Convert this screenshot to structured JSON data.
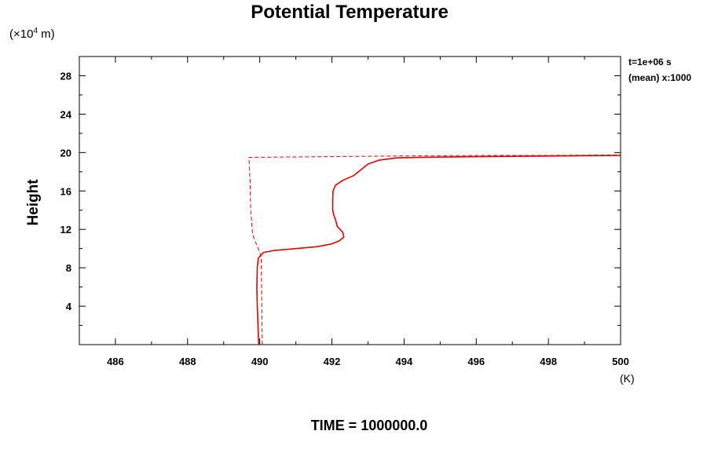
{
  "chart_data": {
    "type": "line",
    "title": "Potential Temperature",
    "ylabel": "Height",
    "y_unit": "(×10",
    "y_unit_exp": "4",
    "y_unit_suffix": " m)",
    "x_unit": "(K)",
    "annotations": [
      "t=1e+06 s",
      "(mean) x:1000"
    ],
    "footer": "TIME = 1000000.0",
    "xlim": [
      485,
      500
    ],
    "ylim": [
      0,
      30
    ],
    "x_ticks": [
      486,
      488,
      490,
      492,
      494,
      496,
      498,
      500
    ],
    "y_ticks": [
      4,
      8,
      12,
      16,
      20,
      24,
      28
    ],
    "grid": false,
    "series": [
      {
        "style": "solid",
        "color": "#e00000",
        "points": [
          [
            489.97,
            0.0
          ],
          [
            489.95,
            2.0
          ],
          [
            489.93,
            4.0
          ],
          [
            489.92,
            6.0
          ],
          [
            489.93,
            8.0
          ],
          [
            489.96,
            9.0
          ],
          [
            490.1,
            9.6
          ],
          [
            490.4,
            9.8
          ],
          [
            491.0,
            10.0
          ],
          [
            491.6,
            10.2
          ],
          [
            492.0,
            10.5
          ],
          [
            492.2,
            10.8
          ],
          [
            492.33,
            11.2
          ],
          [
            492.3,
            11.7
          ],
          [
            492.15,
            12.3
          ],
          [
            492.1,
            13.0
          ],
          [
            492.05,
            13.5
          ],
          [
            492.02,
            14.0
          ],
          [
            492.02,
            15.0
          ],
          [
            492.03,
            16.0
          ],
          [
            492.1,
            16.6
          ],
          [
            492.3,
            17.1
          ],
          [
            492.6,
            17.6
          ],
          [
            492.8,
            18.2
          ],
          [
            493.0,
            18.8
          ],
          [
            493.3,
            19.2
          ],
          [
            493.8,
            19.45
          ],
          [
            494.5,
            19.5
          ],
          [
            495.5,
            19.55
          ],
          [
            497.0,
            19.6
          ],
          [
            498.5,
            19.65
          ],
          [
            500.0,
            19.7
          ]
        ]
      },
      {
        "style": "dashed",
        "color": "#e00000",
        "points": [
          [
            490.07,
            0.0
          ],
          [
            490.06,
            3.0
          ],
          [
            490.05,
            6.0
          ],
          [
            490.04,
            9.0
          ],
          [
            490.0,
            9.6
          ],
          [
            489.9,
            10.5
          ],
          [
            489.8,
            11.5
          ],
          [
            489.75,
            14.0
          ],
          [
            489.73,
            17.0
          ],
          [
            489.7,
            19.5
          ],
          [
            491.5,
            19.55
          ],
          [
            494.0,
            19.65
          ],
          [
            496.5,
            19.7
          ],
          [
            498.0,
            19.7
          ],
          [
            500.0,
            19.75
          ]
        ]
      }
    ]
  }
}
